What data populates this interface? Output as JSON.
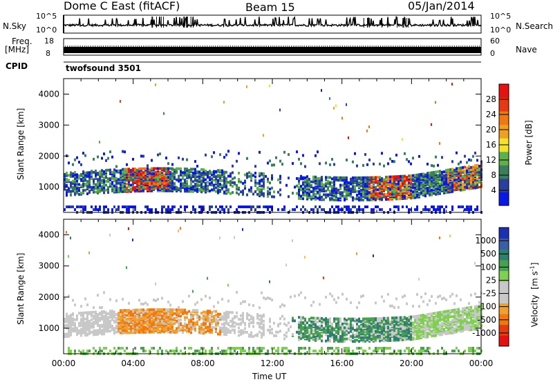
{
  "header": {
    "station": "Dome C East (fitACF)",
    "beam": "Beam 15",
    "date": "05/Jan/2014"
  },
  "status_panels": {
    "nsky_label": "N.Sky",
    "nsearch_label": "N.Search",
    "noise_ticks_left": [
      "10^5",
      "10^0"
    ],
    "noise_ticks_right": [
      "10^5",
      "10^0"
    ],
    "freq_label_1": "Freq.",
    "freq_label_2": "[MHz]",
    "freq_ticks": [
      "18",
      "8"
    ],
    "nave_label": "Nave",
    "nave_ticks": [
      "60",
      "0"
    ],
    "cpid_label": "CPID",
    "cpid_value": "twofsound 3501"
  },
  "colors": {
    "power_scale": [
      "#0b17e6",
      "#2a3f9e",
      "#3a7f5a",
      "#5fb04a",
      "#f2e22a",
      "#f0a020",
      "#f07810",
      "#e83a10",
      "#e81010"
    ],
    "velocity_scale": [
      "#1e2fb0",
      "#3a5fa8",
      "#2f7f6f",
      "#4aa050",
      "#7fd050",
      "#c8c8c8",
      "#c8c8c8",
      "#f4c060",
      "#f0a030",
      "#f07810",
      "#e83a10",
      "#e81010"
    ]
  },
  "chart_data": [
    {
      "type": "heatmap",
      "title": "",
      "xlabel": "",
      "ylabel": "Slant Range [km]",
      "xlim": [
        0,
        24
      ],
      "ylim": [
        180,
        4500
      ],
      "yticks": [
        "1000",
        "2000",
        "3000",
        "4000"
      ],
      "colorbar": {
        "label": "Power [dB]",
        "ticks": [
          "4",
          "8",
          "12",
          "16",
          "20",
          "24",
          "28"
        ],
        "range": [
          0,
          30
        ]
      },
      "main_band_range_km": [
        1000,
        1600
      ],
      "strong_echo_periods_ut": [
        [
          3.5,
          6.0
        ],
        [
          17.5,
          20.0
        ],
        [
          22.0,
          24.0
        ]
      ]
    },
    {
      "type": "heatmap",
      "title": "",
      "xlabel": "Time UT",
      "ylabel": "Slant Range [km]",
      "xlim": [
        0,
        24
      ],
      "ylim": [
        180,
        4500
      ],
      "xticks": [
        "00:00",
        "04:00",
        "08:00",
        "12:00",
        "16:00",
        "20:00",
        "00:00"
      ],
      "yticks": [
        "1000",
        "2000",
        "3000",
        "4000"
      ],
      "colorbar": {
        "label_main": "Velocity",
        "label_unit": "[m s",
        "label_sup": "-1",
        "label_end": "]",
        "ticks": [
          "1000",
          "500",
          "100",
          "25",
          "-25",
          "-100",
          "-500",
          "-1000"
        ]
      },
      "negative_velocity_period_ut": [
        3.0,
        9.0
      ],
      "positive_velocity_period_ut": [
        13.0,
        20.0
      ]
    }
  ]
}
